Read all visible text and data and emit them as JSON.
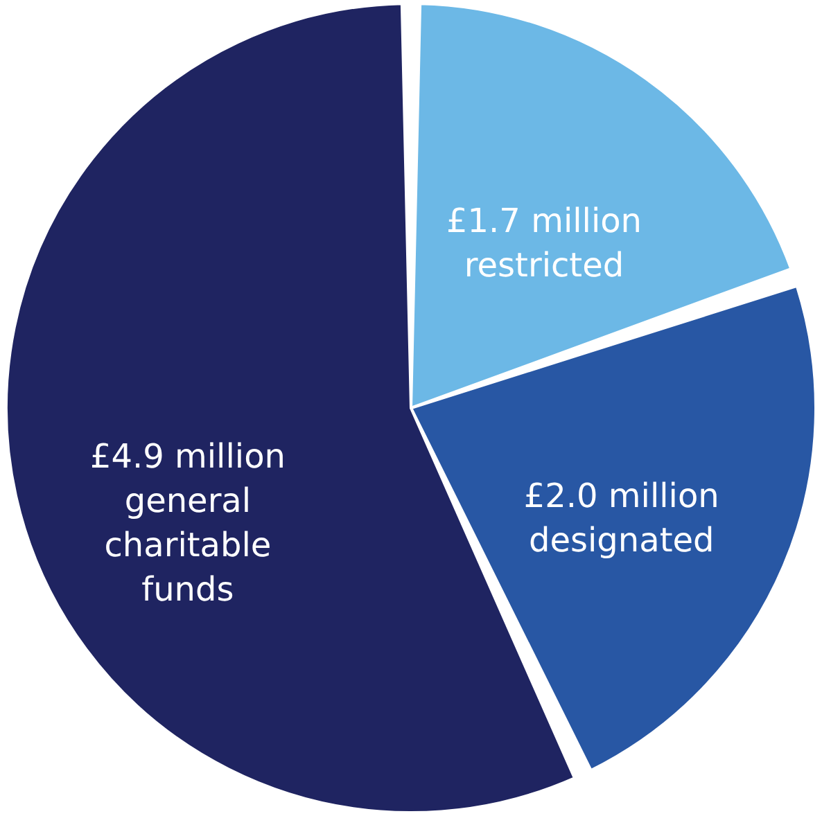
{
  "chart_data": {
    "type": "pie",
    "categories": [
      "restricted",
      "designated",
      "general charitable funds"
    ],
    "values": [
      1.7,
      2.0,
      4.9
    ],
    "value_labels": [
      "£1.7 million",
      "£2.0 million",
      "£4.9 million"
    ],
    "colors": [
      "#6cb8e6",
      "#2857a4",
      "#1f2461"
    ]
  }
}
